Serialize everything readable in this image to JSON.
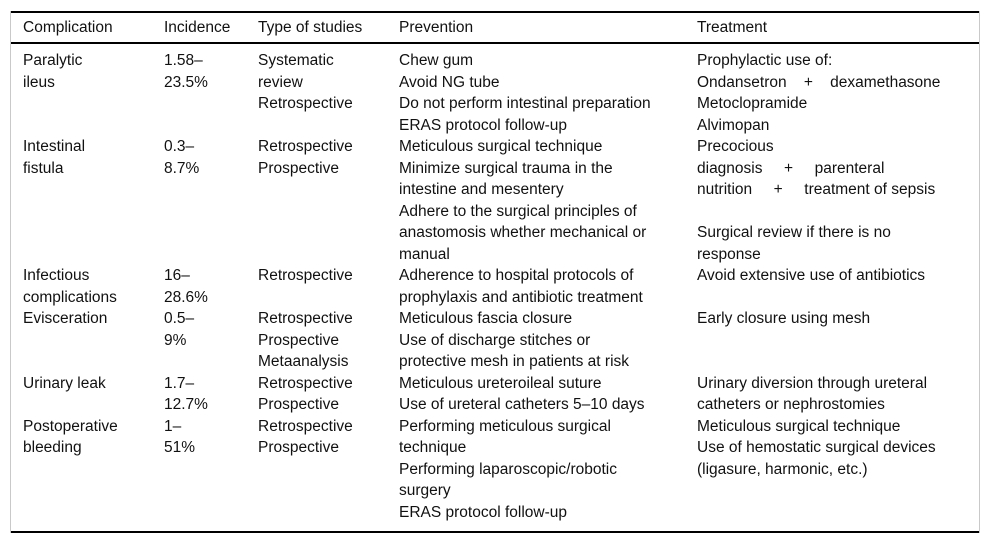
{
  "colors": {
    "background": "#ffffff",
    "text": "#111111",
    "rule": "#000000",
    "frame_line": "#c9c9c9"
  },
  "table": {
    "headers": [
      "Complication",
      "Incidence",
      "Type of studies",
      "Prevention",
      "Treatment"
    ],
    "rows": [
      {
        "complication": "Paralytic\nileus",
        "incidence": "1.58–\n23.5%",
        "studies": "Systematic\nreview\nRetrospective",
        "prevention": "Chew gum\nAvoid NG tube\nDo not perform intestinal preparation\nERAS protocol follow-up",
        "treatment": "Prophylactic use of:\nOndansetron    +    dexamethasone\nMetoclopramide\nAlvimopan"
      },
      {
        "complication": "Intestinal\nfistula",
        "incidence": "0.3–\n8.7%",
        "studies": "Retrospective\nProspective",
        "prevention": "Meticulous surgical technique\nMinimize surgical trauma in the\nintestine and mesentery\nAdhere to the surgical principles of\nanastomosis whether mechanical or\nmanual",
        "treatment": "Precocious\ndiagnosis     +     parenteral\nnutrition     +     treatment of sepsis\n\nSurgical review if there is no\nresponse"
      },
      {
        "complication": "Infectious\ncomplications",
        "incidence": "16–\n28.6%",
        "studies": "Retrospective",
        "prevention": "Adherence to hospital protocols of\nprophylaxis and antibiotic treatment",
        "treatment": "Avoid extensive use of antibiotics"
      },
      {
        "complication": "Evisceration",
        "incidence": "0.5–\n9%",
        "studies": "Retrospective\nProspective\nMetaanalysis",
        "prevention": "Meticulous fascia closure\nUse of discharge stitches or\nprotective mesh in patients at risk",
        "treatment": "Early closure using mesh"
      },
      {
        "complication": "Urinary leak",
        "incidence": "1.7–\n12.7%",
        "studies": "Retrospective\nProspective",
        "prevention": "Meticulous ureteroileal suture\nUse of ureteral catheters 5–10 days",
        "treatment": "Urinary diversion through ureteral\ncatheters or nephrostomies"
      },
      {
        "complication": "Postoperative\nbleeding",
        "incidence": "1–\n51%",
        "studies": "Retrospective\nProspective",
        "prevention": "Performing meticulous surgical\ntechnique\nPerforming laparoscopic/robotic\nsurgery\nERAS protocol follow-up",
        "treatment": "Meticulous surgical technique\nUse of hemostatic surgical devices\n(ligasure, harmonic, etc.)"
      }
    ]
  }
}
